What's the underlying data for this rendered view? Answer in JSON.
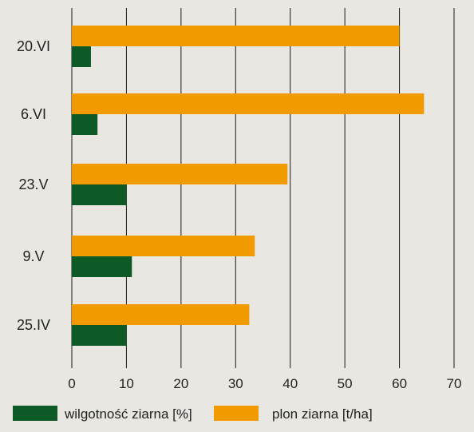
{
  "chart_data": {
    "type": "bar",
    "orientation": "horizontal",
    "categories": [
      "20.VI",
      "6.VI",
      "23.V",
      "9.V",
      "25.IV"
    ],
    "series": [
      {
        "name": "plon ziarna [t/ha]",
        "color": "#f29b00",
        "values": [
          60,
          64.5,
          39.5,
          33.5,
          32.5
        ]
      },
      {
        "name": "wilgotność ziarna [%]",
        "color": "#0d5a26",
        "values": [
          3.5,
          4.7,
          10,
          11,
          10
        ]
      }
    ],
    "xlim": [
      0,
      70
    ],
    "xticks": [
      "0",
      "10",
      "20",
      "30",
      "40",
      "50",
      "60",
      "70"
    ],
    "grid": true,
    "legend_placement": "bottom",
    "legend": [
      {
        "label": "wilgotność ziarna [%]",
        "color": "#0d5a26"
      },
      {
        "label": "plon ziarna [t/ha]",
        "color": "#f29b00"
      }
    ],
    "background": "#e9e7e2",
    "gridline_color": "#1a1a1a"
  }
}
